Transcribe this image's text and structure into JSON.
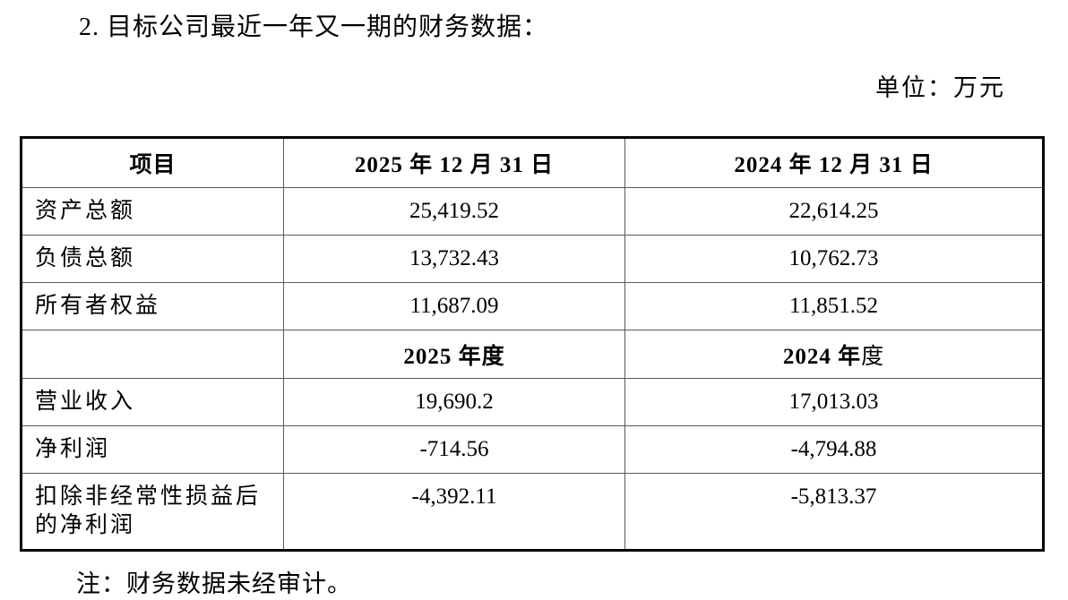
{
  "page": {
    "title": "2. 目标公司最近一年又一期的财务数据：",
    "unit_label": "单位：万元",
    "note": "注：财务数据未经审计。"
  },
  "table": {
    "header": {
      "item": "项目",
      "date_2025": "2025 年 12 月 31 日",
      "date_2024": "2024 年 12 月 31 日"
    },
    "balance_rows": [
      {
        "item": "资产总额",
        "v2025": "25,419.52",
        "v2024": "22,614.25"
      },
      {
        "item": "负债总额",
        "v2025": "13,732.43",
        "v2024": "10,762.73"
      },
      {
        "item": "所有者权益",
        "v2025": "11,687.09",
        "v2024": "11,851.52"
      }
    ],
    "period_header": {
      "item": "",
      "col2_bold": "2025 年度",
      "col3_bold": "2024 年",
      "col3_rest": "度"
    },
    "income_rows": [
      {
        "item": "营业收入",
        "v2025": "19,690.2",
        "v2024": "17,013.03"
      },
      {
        "item": "净利润",
        "v2025": "-714.56",
        "v2024": "-4,794.88"
      },
      {
        "item": "扣除非经常性损益后的净利润",
        "v2025": "-4,392.11",
        "v2024": "-5,813.37"
      }
    ]
  }
}
